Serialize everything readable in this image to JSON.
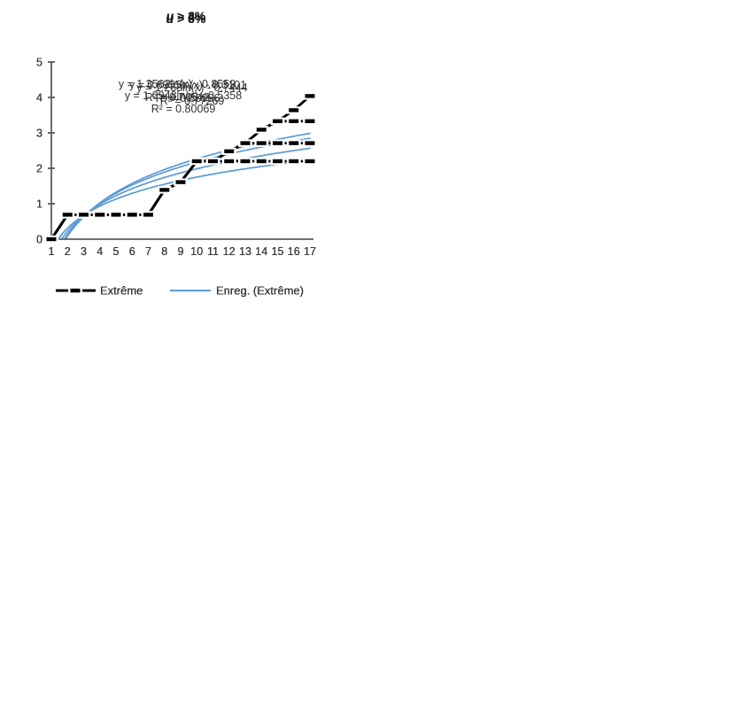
{
  "colors": {
    "series": "#000000",
    "trend": "#5B9BD5",
    "axis": "#595959",
    "text": "#333333"
  },
  "legend_labels": [
    "Extrême",
    "Enreg. (Extrême)"
  ],
  "chart_data": [
    {
      "type": "line",
      "title": "u > 3%",
      "title_var": "u",
      "title_rest": " > 3%",
      "equation": "y = 1.3562ln(x) - 0.8559",
      "r_squared": "R² = 0.74542",
      "trend": {
        "a": 1.3562,
        "b": -0.8559
      },
      "x": [
        1,
        2,
        3,
        4,
        5,
        6,
        7,
        8,
        9,
        10,
        11,
        12,
        13,
        14,
        15,
        16,
        17
      ],
      "y_ticks": [
        0,
        1,
        2,
        3,
        4,
        5
      ],
      "ylim": [
        0,
        5
      ],
      "xlabel": "",
      "ylabel": "",
      "grid": false,
      "legend_position": "bottom",
      "series": [
        {
          "name": "Extrême",
          "style": "black-line-dash-markers",
          "values": [
            0,
            0.69,
            0.69,
            0.69,
            0.69,
            0.69,
            0.69,
            1.39,
            1.61,
            2.2,
            2.2,
            2.48,
            2.71,
            3.09,
            3.33,
            3.64,
            4.04
          ]
        },
        {
          "name": "Enreg. (Extrême)",
          "style": "log-trendline",
          "formula": "y = 1.3562ln(x) - 0.8559"
        }
      ]
    },
    {
      "type": "line",
      "title": "u > 4%",
      "title_var": "u",
      "title_rest": " > 4%",
      "equation": "y = 1.268ln(x) - 0.7444",
      "r_squared": "R² = 0.77269",
      "trend": {
        "a": 1.268,
        "b": -0.7444
      },
      "x": [
        1,
        2,
        3,
        4,
        5,
        6,
        7,
        8,
        9,
        10,
        11,
        12,
        13,
        14,
        15,
        16,
        17
      ],
      "y_ticks": [
        0,
        1,
        2,
        3,
        4,
        5
      ],
      "ylim": [
        0,
        5
      ],
      "xlabel": "",
      "ylabel": "",
      "grid": false,
      "legend_position": "bottom",
      "series": [
        {
          "name": "Extrême",
          "style": "black-line-dash-markers",
          "values": [
            0,
            0.69,
            0.69,
            0.69,
            0.69,
            0.69,
            0.69,
            1.39,
            1.61,
            2.2,
            2.2,
            2.48,
            2.71,
            3.09,
            3.33,
            3.33,
            3.33
          ]
        },
        {
          "name": "Enreg. (Extrême)",
          "style": "log-trendline",
          "formula": "y = 1.268ln(x) - 0.7444"
        }
      ]
    },
    {
      "type": "line",
      "title": "u > 5%",
      "title_var": "u",
      "title_rest": " > 5%",
      "equation": "y = 1.0948ln(x) - 0.5358",
      "r_squared": "R² = 0.80069",
      "trend": {
        "a": 1.0948,
        "b": -0.5358
      },
      "x": [
        1,
        2,
        3,
        4,
        5,
        6,
        7,
        8,
        9,
        10,
        11,
        12,
        13,
        14,
        15,
        16,
        17
      ],
      "y_ticks": [
        0,
        1,
        2,
        3,
        4,
        5
      ],
      "ylim": [
        0,
        5
      ],
      "xlabel": "",
      "ylabel": "",
      "grid": false,
      "legend_position": "bottom",
      "series": [
        {
          "name": "Extrême",
          "style": "black-line-dash-markers",
          "values": [
            0,
            0.69,
            0.69,
            0.69,
            0.69,
            0.69,
            0.69,
            1.39,
            1.61,
            2.2,
            2.2,
            2.48,
            2.71,
            2.71,
            2.71,
            2.71,
            2.71
          ]
        },
        {
          "name": "Enreg. (Extrême)",
          "style": "log-trendline",
          "formula": "y = 1.0948ln(x) - 0.5358"
        }
      ]
    },
    {
      "type": "line",
      "title": "u > 6%",
      "title_var": "u",
      "title_rest": " > 6%",
      "equation": "y = 0.8955ln(x) - 0.3101",
      "r_squared": "R² = 0.80966",
      "trend": {
        "a": 0.8955,
        "b": -0.3101
      },
      "x": [
        1,
        2,
        3,
        4,
        5,
        6,
        7,
        8,
        9,
        10,
        11,
        12,
        13,
        14,
        15,
        16,
        17
      ],
      "y_ticks": [
        0,
        1,
        2,
        3,
        4,
        5
      ],
      "ylim": [
        0,
        5
      ],
      "xlabel": "",
      "ylabel": "",
      "grid": false,
      "legend_position": "bottom",
      "series": [
        {
          "name": "Extrême",
          "style": "black-line-dash-markers",
          "values": [
            0,
            0.69,
            0.69,
            0.69,
            0.69,
            0.69,
            0.69,
            1.39,
            1.61,
            2.2,
            2.2,
            2.2,
            2.2,
            2.2,
            2.2,
            2.2,
            2.2
          ]
        },
        {
          "name": "Enreg. (Extrême)",
          "style": "log-trendline",
          "formula": "y = 0.8955ln(x) - 0.3101"
        }
      ]
    }
  ]
}
